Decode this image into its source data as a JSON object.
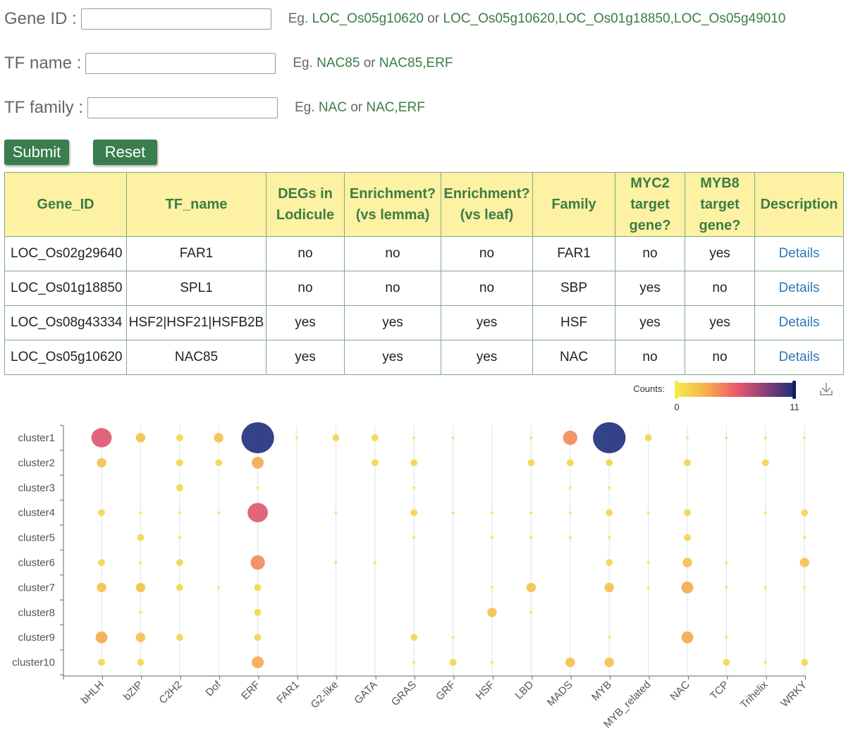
{
  "form": {
    "gene_id": {
      "label": "Gene ID :",
      "value": "",
      "eg": "Eg.",
      "ex1": "LOC_Os05g10620",
      "or": "or",
      "ex2": "LOC_Os05g10620,LOC_Os01g18850,LOC_Os05g49010"
    },
    "tf_name": {
      "label": "TF name :",
      "value": "",
      "eg": "Eg.",
      "ex1": "NAC85",
      "or": "or",
      "ex2": "NAC85,ERF"
    },
    "tf_family": {
      "label": "TF family :",
      "value": "",
      "eg": "Eg.",
      "ex1": "NAC",
      "or": "or",
      "ex2": "NAC,ERF"
    },
    "submit_label": "Submit",
    "reset_label": "Reset"
  },
  "table": {
    "headers": [
      [
        "Gene_ID"
      ],
      [
        "TF_name"
      ],
      [
        "DEGs in",
        "Lodicule"
      ],
      [
        "Enrichment?",
        "(vs lemma)"
      ],
      [
        "Enrichment?",
        "(vs leaf)"
      ],
      [
        "Family"
      ],
      [
        "MYC2",
        "target",
        "gene?"
      ],
      [
        "MYB8",
        "target",
        "gene?"
      ],
      [
        "Description"
      ]
    ],
    "rows": [
      [
        "LOC_Os02g29640",
        "FAR1",
        "no",
        "no",
        "no",
        "FAR1",
        "no",
        "yes",
        "Details"
      ],
      [
        "LOC_Os01g18850",
        "SPL1",
        "no",
        "no",
        "no",
        "SBP",
        "yes",
        "no",
        "Details"
      ],
      [
        "LOC_Os08g43334",
        "HSF2|HSF21|HSFB2B",
        "yes",
        "yes",
        "yes",
        "HSF",
        "yes",
        "yes",
        "Details"
      ],
      [
        "LOC_Os05g10620",
        "NAC85",
        "yes",
        "yes",
        "yes",
        "NAC",
        "no",
        "no",
        "Details"
      ]
    ]
  },
  "chart_data": {
    "type": "scatter",
    "subtype": "bubble",
    "legend": {
      "title": "Counts:",
      "min": 0,
      "max": 11,
      "min_label": "0",
      "max_label": "11",
      "colors": [
        "#f5e94a",
        "#f5b14a",
        "#ee5a6a",
        "#8c3f7a",
        "#1e2e7a"
      ]
    },
    "toolbox_icon": "download-icon",
    "y_categories": [
      "cluster1",
      "cluster2",
      "cluster3",
      "cluster4",
      "cluster5",
      "cluster6",
      "cluster7",
      "cluster8",
      "cluster9",
      "cluster10"
    ],
    "x_categories": [
      "bHLH",
      "bZIP",
      "C2H2",
      "Dof",
      "ERF",
      "FAR1",
      "G2-like",
      "GATA",
      "GRAS",
      "GRF",
      "HSF",
      "LBD",
      "MADS",
      "MYB",
      "MYB_related",
      "NAC",
      "TCP",
      "Trihelix",
      "WRKY"
    ],
    "points": [
      [
        0,
        0,
        6
      ],
      [
        0,
        1,
        2
      ],
      [
        0,
        2,
        1
      ],
      [
        0,
        3,
        2
      ],
      [
        0,
        4,
        11
      ],
      [
        0,
        5,
        0.2
      ],
      [
        0,
        6,
        1
      ],
      [
        0,
        7,
        1
      ],
      [
        0,
        8,
        0.3
      ],
      [
        0,
        9,
        0.3
      ],
      [
        0,
        11,
        0.3
      ],
      [
        0,
        12,
        4
      ],
      [
        0,
        13,
        11
      ],
      [
        0,
        14,
        1
      ],
      [
        0,
        15,
        0.3
      ],
      [
        0,
        16,
        0.3
      ],
      [
        0,
        17,
        0.3
      ],
      [
        0,
        18,
        0.3
      ],
      [
        1,
        0,
        2
      ],
      [
        1,
        2,
        1
      ],
      [
        1,
        3,
        1
      ],
      [
        1,
        4,
        3
      ],
      [
        1,
        7,
        1
      ],
      [
        1,
        8,
        1
      ],
      [
        1,
        11,
        1
      ],
      [
        1,
        12,
        1
      ],
      [
        1,
        13,
        1
      ],
      [
        1,
        15,
        1
      ],
      [
        1,
        17,
        1
      ],
      [
        2,
        2,
        1
      ],
      [
        2,
        4,
        0.3
      ],
      [
        2,
        8,
        0.3
      ],
      [
        2,
        12,
        0.3
      ],
      [
        2,
        13,
        0.3
      ],
      [
        3,
        0,
        1
      ],
      [
        3,
        1,
        0.3
      ],
      [
        3,
        2,
        0.3
      ],
      [
        3,
        3,
        0.3
      ],
      [
        3,
        4,
        6
      ],
      [
        3,
        6,
        0.3
      ],
      [
        3,
        8,
        1
      ],
      [
        3,
        9,
        0.3
      ],
      [
        3,
        10,
        0.3
      ],
      [
        3,
        11,
        0.3
      ],
      [
        3,
        12,
        0.3
      ],
      [
        3,
        13,
        1
      ],
      [
        3,
        14,
        0.3
      ],
      [
        3,
        15,
        1
      ],
      [
        3,
        17,
        0.3
      ],
      [
        3,
        18,
        1
      ],
      [
        4,
        1,
        1
      ],
      [
        4,
        2,
        0.3
      ],
      [
        4,
        8,
        0.3
      ],
      [
        4,
        10,
        0.3
      ],
      [
        4,
        11,
        0.3
      ],
      [
        4,
        12,
        0.3
      ],
      [
        4,
        13,
        0.3
      ],
      [
        4,
        15,
        1
      ],
      [
        4,
        18,
        0.3
      ],
      [
        5,
        0,
        1
      ],
      [
        5,
        1,
        0.3
      ],
      [
        5,
        2,
        1
      ],
      [
        5,
        4,
        4
      ],
      [
        5,
        6,
        0.3
      ],
      [
        5,
        7,
        0.3
      ],
      [
        5,
        13,
        1
      ],
      [
        5,
        14,
        0.3
      ],
      [
        5,
        15,
        2
      ],
      [
        5,
        16,
        0.3
      ],
      [
        5,
        18,
        2
      ],
      [
        6,
        0,
        2
      ],
      [
        6,
        1,
        2
      ],
      [
        6,
        2,
        1
      ],
      [
        6,
        3,
        0.3
      ],
      [
        6,
        4,
        1
      ],
      [
        6,
        10,
        0.3
      ],
      [
        6,
        11,
        2
      ],
      [
        6,
        13,
        2
      ],
      [
        6,
        14,
        0.3
      ],
      [
        6,
        15,
        3
      ],
      [
        6,
        16,
        0.3
      ],
      [
        6,
        17,
        0.3
      ],
      [
        6,
        18,
        0.3
      ],
      [
        7,
        1,
        0.3
      ],
      [
        7,
        4,
        1
      ],
      [
        7,
        10,
        2
      ],
      [
        7,
        11,
        0.3
      ],
      [
        8,
        0,
        3
      ],
      [
        8,
        1,
        2
      ],
      [
        8,
        2,
        1
      ],
      [
        8,
        4,
        1
      ],
      [
        8,
        8,
        1
      ],
      [
        8,
        9,
        0.3
      ],
      [
        8,
        13,
        0.3
      ],
      [
        8,
        15,
        3
      ],
      [
        8,
        16,
        0.3
      ],
      [
        9,
        0,
        1
      ],
      [
        9,
        1,
        1
      ],
      [
        9,
        4,
        3
      ],
      [
        9,
        8,
        0.3
      ],
      [
        9,
        9,
        1
      ],
      [
        9,
        10,
        0.3
      ],
      [
        9,
        12,
        2
      ],
      [
        9,
        13,
        2
      ],
      [
        9,
        16,
        1
      ],
      [
        9,
        17,
        0.3
      ],
      [
        9,
        18,
        1
      ]
    ]
  }
}
